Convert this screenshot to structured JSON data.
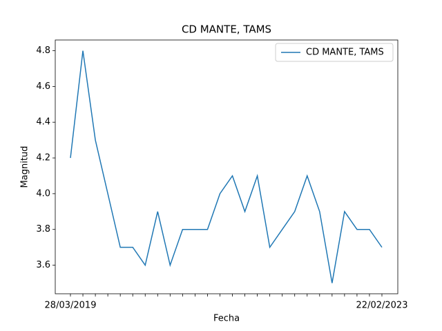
{
  "chart_data": {
    "type": "line",
    "title": "CD MANTE, TAMS",
    "x_label": "Fecha",
    "y_label": "Magnitud",
    "categories": [
      "28/03/2019",
      null,
      null,
      null,
      null,
      null,
      null,
      null,
      null,
      null,
      null,
      null,
      null,
      null,
      null,
      null,
      null,
      null,
      null,
      null,
      null,
      null,
      null,
      null,
      null,
      "22/02/2023"
    ],
    "series": [
      {
        "name": "CD MANTE, TAMS",
        "color": "#1f77b4",
        "values": [
          4.2,
          4.8,
          4.3,
          4.0,
          3.7,
          3.7,
          3.6,
          3.9,
          3.6,
          3.8,
          3.8,
          3.8,
          4.0,
          4.1,
          3.9,
          4.1,
          3.7,
          3.8,
          3.9,
          4.1,
          3.9,
          3.5,
          3.9,
          3.8,
          3.8,
          3.7
        ]
      }
    ],
    "ylim": [
      3.44,
      4.86
    ],
    "yticks": [
      3.6,
      3.8,
      {
        "value": 4,
        "label": "4.0"
      },
      4.2,
      4.4,
      4.6,
      4.8
    ],
    "legend": "upper right"
  }
}
